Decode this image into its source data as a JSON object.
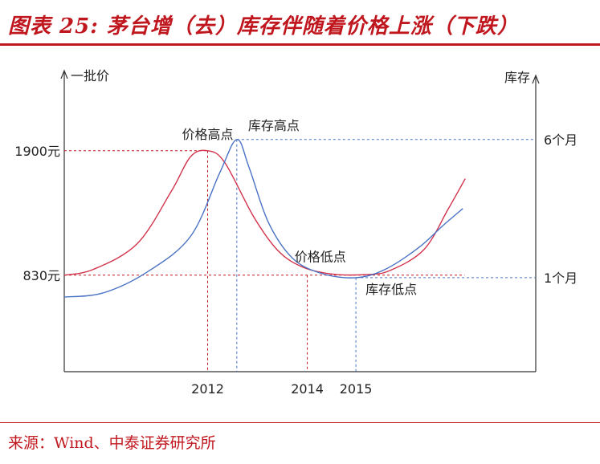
{
  "title": "图表 25: 茅台增（去）库存伴随着价格上涨（下跌）",
  "source": "来源：Wind、中泰证券研究所",
  "colors": {
    "accent": "#c0171f",
    "price_line": "#d2334b",
    "inventory_line": "#4a72c4",
    "axis": "#333333"
  },
  "chart_data": {
    "type": "line",
    "title": "茅台增（去）库存伴随着价格上涨（下跌）",
    "xlabel": "",
    "ylabel_left": "一批价",
    "ylabel_right": "库存",
    "x_ticks": [
      "2012",
      "2014",
      "2015"
    ],
    "y_left_ticks": [
      "1900元",
      "830元"
    ],
    "y_right_ticks": [
      "6个月",
      "1个月"
    ],
    "series": [
      {
        "name": "一批价",
        "axis": "left",
        "unit": "元",
        "points": [
          {
            "x": 2009.0,
            "y": 830
          },
          {
            "x": 2009.6,
            "y": 880
          },
          {
            "x": 2010.5,
            "y": 1100
          },
          {
            "x": 2011.2,
            "y": 1550
          },
          {
            "x": 2011.6,
            "y": 1850
          },
          {
            "x": 2011.95,
            "y": 1900
          },
          {
            "x": 2012.3,
            "y": 1800
          },
          {
            "x": 2012.9,
            "y": 1330
          },
          {
            "x": 2013.4,
            "y": 1040
          },
          {
            "x": 2013.9,
            "y": 900
          },
          {
            "x": 2014.5,
            "y": 840
          },
          {
            "x": 2015.2,
            "y": 835
          },
          {
            "x": 2015.7,
            "y": 870
          },
          {
            "x": 2016.4,
            "y": 1050
          },
          {
            "x": 2016.9,
            "y": 1400
          },
          {
            "x": 2017.25,
            "y": 1660
          }
        ]
      },
      {
        "name": "库存",
        "axis": "right",
        "unit": "个月",
        "points": [
          {
            "x": 2009.0,
            "y": 0.3
          },
          {
            "x": 2009.8,
            "y": 0.45
          },
          {
            "x": 2010.7,
            "y": 1.2
          },
          {
            "x": 2011.6,
            "y": 2.5
          },
          {
            "x": 2012.2,
            "y": 4.8
          },
          {
            "x": 2012.55,
            "y": 6.0
          },
          {
            "x": 2012.8,
            "y": 5.0
          },
          {
            "x": 2013.2,
            "y": 3.0
          },
          {
            "x": 2013.7,
            "y": 1.7
          },
          {
            "x": 2014.3,
            "y": 1.15
          },
          {
            "x": 2015.0,
            "y": 1.0
          },
          {
            "x": 2015.6,
            "y": 1.3
          },
          {
            "x": 2016.3,
            "y": 2.1
          },
          {
            "x": 2016.8,
            "y": 2.9
          },
          {
            "x": 2017.2,
            "y": 3.5
          }
        ]
      }
    ],
    "reference_lines": [
      {
        "axis": "left",
        "y": 1900,
        "label": "1900元"
      },
      {
        "axis": "left",
        "y": 830,
        "label": "830元"
      },
      {
        "axis": "right",
        "y": 6,
        "label": "6个月"
      },
      {
        "axis": "right",
        "y": 1,
        "label": "1个月"
      },
      {
        "axis": "x",
        "x": 2011.95,
        "label": "2012"
      },
      {
        "axis": "x",
        "x": 2014.0,
        "label": "2014"
      },
      {
        "axis": "x",
        "x": 2015.0,
        "label": "2015"
      },
      {
        "axis": "x",
        "x": 2012.55,
        "label": ""
      }
    ],
    "annotations": [
      {
        "text": "价格高点",
        "x": 2011.95,
        "y": 1900,
        "axis": "left",
        "where": "above"
      },
      {
        "text": "库存高点",
        "x": 2012.55,
        "y": 6,
        "axis": "right",
        "where": "above-right"
      },
      {
        "text": "价格低点",
        "x": 2014.3,
        "y": 840,
        "axis": "left",
        "where": "above"
      },
      {
        "text": "库存低点",
        "x": 2015.0,
        "y": 1.0,
        "axis": "right",
        "where": "below-right"
      }
    ],
    "x_range": [
      2009.0,
      2018.7
    ],
    "y_left_range": [
      0,
      2520
    ],
    "y_right_range": [
      -2.4,
      8.2
    ]
  }
}
